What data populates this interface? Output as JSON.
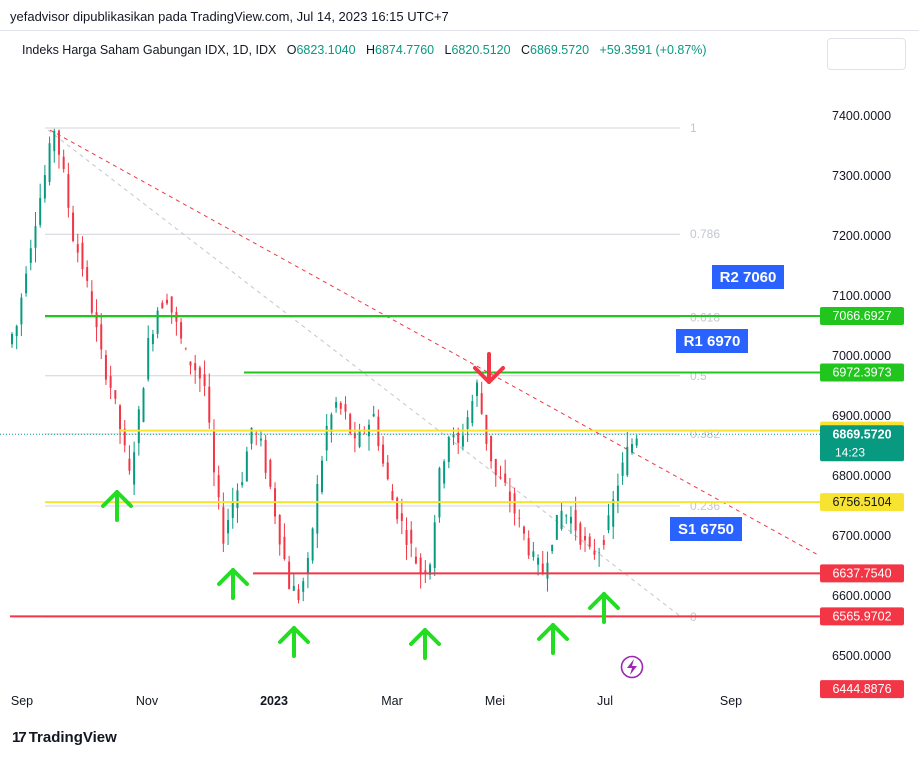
{
  "header": {
    "publisher": "yefadvisor dipublikasikan pada TradingView.com, Jul 14, 2023 16:15 UTC+7"
  },
  "legend": {
    "symbol": "Indeks Harga Saham Gabungan IDX, 1D, IDX",
    "open_label": "O",
    "open": "6823.1040",
    "high_label": "H",
    "high": "6874.7760",
    "low_label": "L",
    "low": "6820.5120",
    "close_label": "C",
    "close": "6869.5720",
    "change": "+59.3591 (+0.87%)"
  },
  "footer": {
    "brand": "TradingView"
  },
  "colors": {
    "up": "#089981",
    "down": "#f23645",
    "green_line": "#22c51e",
    "yellow_line": "#f7e332",
    "red_line": "#f23645",
    "fib": "#b2b5be",
    "callout": "#2962ff",
    "arrow_green": "#22dd22",
    "arrow_red": "#f23645"
  },
  "chart_data": {
    "type": "candlestick",
    "x_ticks": [
      "Sep",
      "Nov",
      "2023",
      "Mar",
      "Mei",
      "Jul",
      "Sep"
    ],
    "y_ticks": [
      "7400.0000",
      "7300.0000",
      "7200.0000",
      "7100.0000",
      "7000.0000",
      "6900.0000",
      "6800.0000",
      "6700.0000",
      "6600.0000",
      "6500.0000"
    ],
    "ylim": [
      6430,
      7460
    ],
    "series_approx_close": [
      7050,
      7150,
      7230,
      7300,
      7380,
      7300,
      7200,
      7150,
      7080,
      7000,
      6950,
      6880,
      6800,
      6900,
      7020,
      7080,
      7100,
      7050,
      7000,
      6980,
      6950,
      6800,
      6700,
      6760,
      6800,
      6880,
      6850,
      6780,
      6700,
      6620,
      6600,
      6650,
      6780,
      6880,
      6920,
      6900,
      6850,
      6880,
      6900,
      6820,
      6760,
      6720,
      6680,
      6640,
      6660,
      6800,
      6870,
      6850,
      6900,
      6950,
      6860,
      6800,
      6780,
      6740,
      6700,
      6660,
      6640,
      6700,
      6740,
      6730,
      6700,
      6670,
      6680,
      6720,
      6790,
      6840,
      6870
    ],
    "horizontal_levels": [
      {
        "value": "7066.6927",
        "color": "#22c51e"
      },
      {
        "value": "6972.3973",
        "color": "#22c51e"
      },
      {
        "value": "6875.6204",
        "color": "#f7e332"
      },
      {
        "value": "6756.5104",
        "color": "#f7e332"
      },
      {
        "value": "6637.7540",
        "color": "#f23645"
      },
      {
        "value": "6565.9702",
        "color": "#f23645"
      }
    ],
    "extra_price_labels": [
      {
        "value": "6444.8876",
        "color": "#f23645"
      }
    ],
    "last_price": {
      "value": "6869.5720",
      "countdown": "14:23"
    },
    "fibonacci": [
      {
        "label": "1",
        "value": 7380
      },
      {
        "label": "0.786",
        "value": 7203
      },
      {
        "label": "0.618",
        "value": 7064
      },
      {
        "label": "0.5",
        "value": 6967
      },
      {
        "label": "0.382",
        "value": 6870
      },
      {
        "label": "0.236",
        "value": 6750
      },
      {
        "label": "0",
        "value": 6565
      }
    ],
    "annotations": [
      {
        "text": "R2 7060"
      },
      {
        "text": "R1 6970"
      },
      {
        "text": "S1 6750"
      }
    ]
  }
}
